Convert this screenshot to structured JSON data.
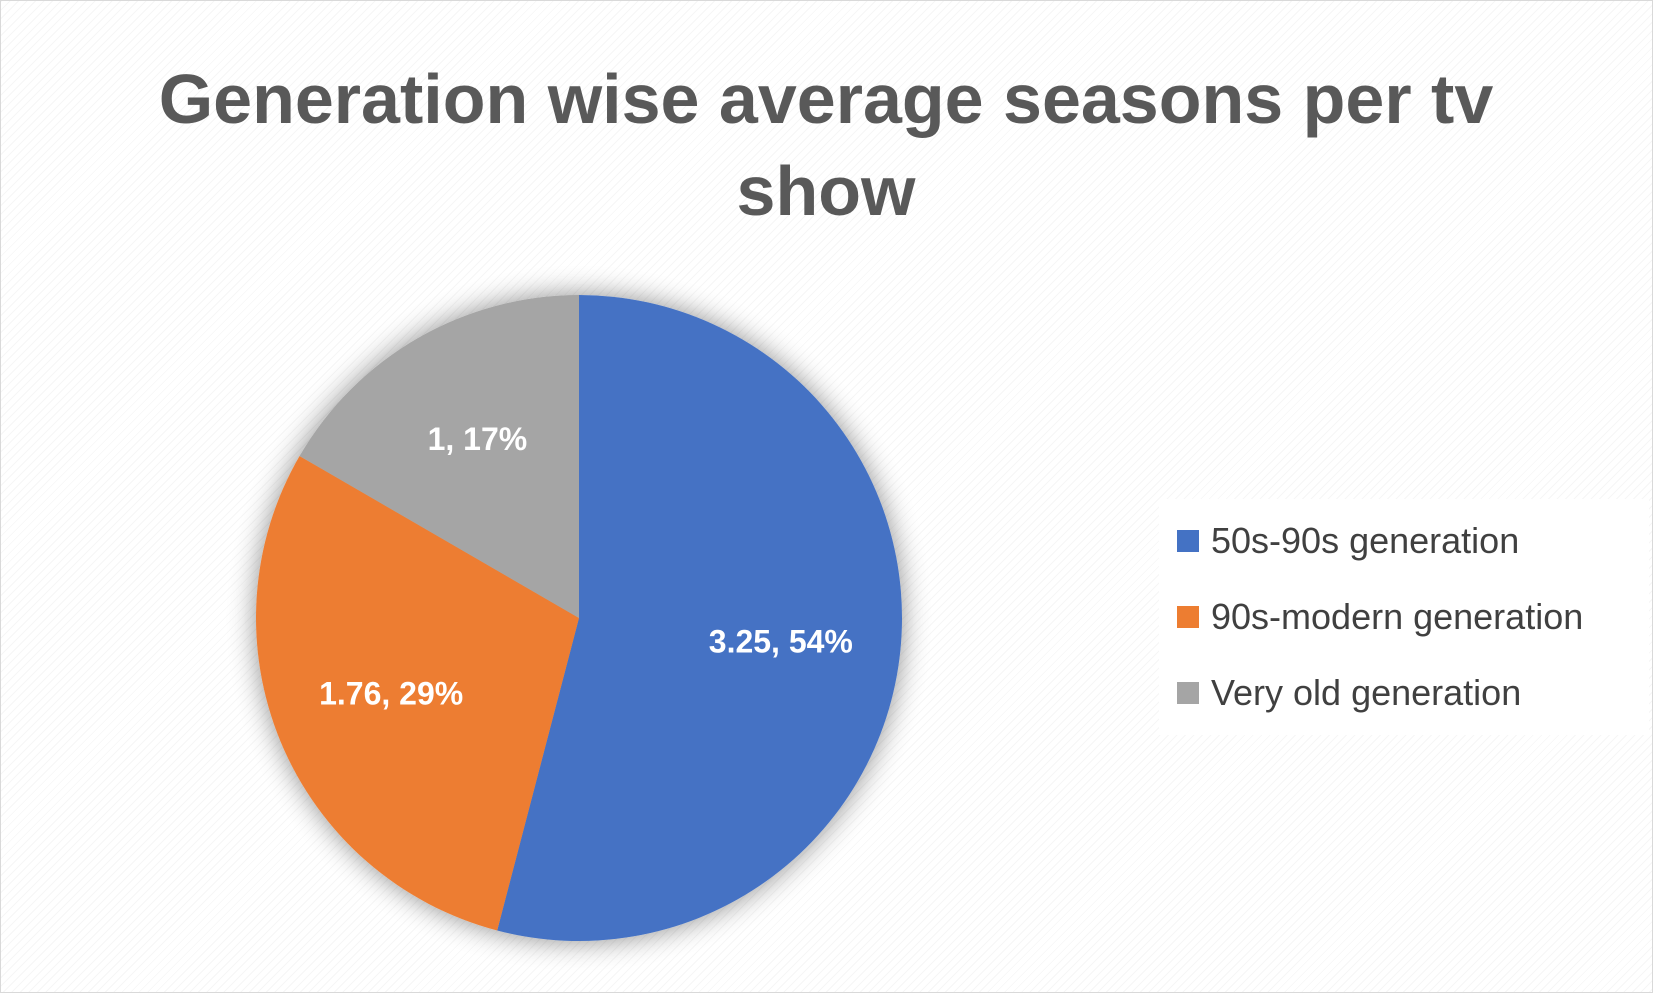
{
  "chart_data": {
    "type": "pie",
    "title": "Generation wise average seasons per tv show",
    "categories": [
      "50s-90s generation",
      "90s-modern generation",
      "Very old generation"
    ],
    "values": [
      3.25,
      1.76,
      1
    ],
    "data_labels": [
      "3.25, 54%",
      "1.76, 29%",
      "1, 17%"
    ],
    "colors": [
      "#4472C4",
      "#ED7D31",
      "#A5A5A5"
    ],
    "legend_placement": "right"
  }
}
